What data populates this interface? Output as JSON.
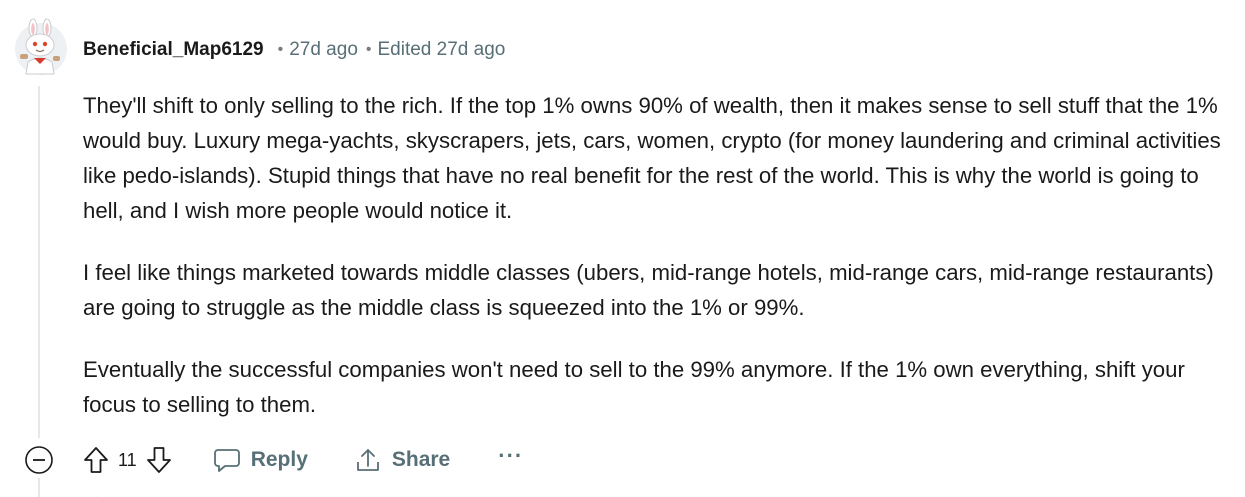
{
  "comment": {
    "author": "Beneficial_Map6129",
    "meta_separator": "•",
    "time": "27d ago",
    "edited": "Edited 27d ago",
    "paragraphs": [
      "They'll shift to only selling to the rich. If the top 1% owns 90% of wealth, then it makes sense to sell stuff that the 1% would buy. Luxury mega-yachts, skyscrapers, jets, cars, women, crypto (for money laundering and criminal activities like pedo-islands). Stupid things that have no real benefit for the rest of the world. This is why the world is going to hell, and I wish more people would notice it.",
      "I feel like things marketed towards middle classes (ubers, mid-range hotels, mid-range cars, mid-range restaurants) are going to struggle as the middle class is squeezed into the 1% or 99%.",
      "Eventually the successful companies won't need to sell to the 99% anymore. If the 1% own everything, shift your focus to selling to them."
    ],
    "actions": {
      "vote_count": "11",
      "reply_label": "Reply",
      "share_label": "Share",
      "more_label": "···"
    }
  },
  "colors": {
    "text": "#1a1a1b",
    "meta": "#576f76",
    "thread_line": "#e5e7e9"
  },
  "icons": {
    "collapse": "minus-circle-icon",
    "upvote": "arrow-up-icon",
    "downvote": "arrow-down-icon",
    "reply": "chat-bubble-icon",
    "share": "share-icon",
    "more": "ellipsis-icon",
    "avatar": "snoo-avatar"
  }
}
